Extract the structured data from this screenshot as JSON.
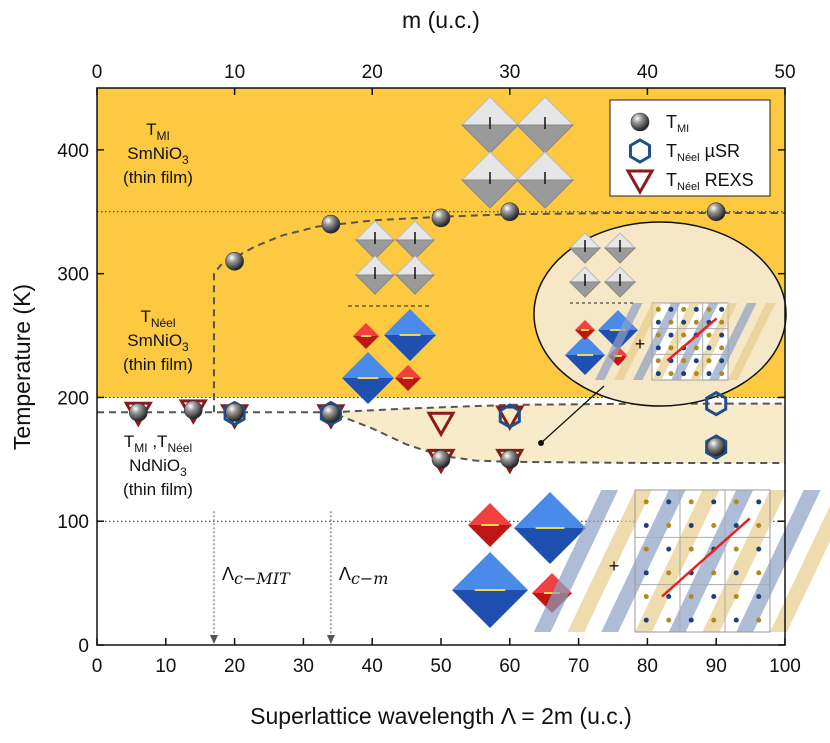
{
  "chart_data": {
    "type": "scatter",
    "x_label": "Superlattice wavelength Λ = 2m (u.c.)",
    "x2_label": "m (u.c.)",
    "y_label": "Temperature (K)",
    "xlim": [
      0,
      100
    ],
    "xticks": [
      0,
      10,
      20,
      30,
      40,
      50,
      60,
      70,
      80,
      90,
      100
    ],
    "x2lim": [
      0,
      50
    ],
    "x2ticks": [
      0,
      10,
      20,
      30,
      40,
      50
    ],
    "ylim": [
      0,
      450
    ],
    "yticks": [
      0,
      100,
      200,
      300,
      400
    ],
    "series": [
      {
        "name": "T",
        "subscript": "Néel",
        "suffix": " REXS",
        "marker": "triangle",
        "color": "#8b1a1a",
        "x": [
          6,
          14,
          20,
          34,
          50,
          60,
          50,
          60
        ],
        "values": [
          188,
          190,
          186,
          186,
          180,
          185,
          150,
          150
        ]
      },
      {
        "name": "T",
        "subscript": "Néel",
        "suffix": " µSR",
        "marker": "hexagon",
        "color": "#1f4e8c",
        "x": [
          20,
          34,
          60,
          90,
          90
        ],
        "values": [
          187,
          187,
          185,
          195,
          160
        ]
      },
      {
        "name": "T",
        "subscript": "MI",
        "suffix": "",
        "marker": "sphere",
        "color": "#555555",
        "x": [
          6,
          14,
          20,
          34,
          50,
          60,
          90,
          20,
          34,
          50,
          60,
          90
        ],
        "values": [
          188,
          190,
          188,
          187,
          150,
          150,
          160,
          310,
          340,
          345,
          350,
          350
        ]
      }
    ],
    "legend_order": [
      2,
      1,
      0
    ],
    "reference_lines": [
      350,
      200,
      100
    ],
    "shade_color": "#fcc940",
    "band_color": "#f8ebc9",
    "guides": [
      {
        "x": [
          17,
          17,
          18,
          20,
          23,
          27,
          32,
          40,
          50,
          60,
          75,
          100
        ],
        "y": [
          188,
          300,
          307,
          313,
          322,
          331,
          338,
          343,
          346,
          348,
          349,
          349
        ]
      },
      {
        "x": [
          0,
          34,
          40,
          45,
          50,
          55,
          60,
          80,
          100
        ],
        "y": [
          188,
          188,
          175,
          162,
          153,
          149,
          148,
          147,
          147
        ]
      },
      {
        "x": [
          34,
          45,
          60,
          80,
          100
        ],
        "y": [
          188,
          191,
          194,
          195,
          195
        ]
      }
    ],
    "critical_lines": [
      {
        "x": 17,
        "symbol": "Λ",
        "subscript": "c−MIT"
      },
      {
        "x": 34,
        "symbol": "Λ",
        "subscript": "c−m"
      }
    ],
    "annotations": [
      {
        "lines": [
          [
            "T",
            "MI"
          ],
          [
            "SmNiO",
            "3"
          ],
          [
            "(thin film)"
          ]
        ]
      },
      {
        "lines": [
          [
            "T",
            "Néel"
          ],
          [
            "SmNiO",
            "3"
          ],
          [
            "(thin film)"
          ]
        ]
      },
      {
        "lines": [
          [
            "T",
            "MI",
            " ,T",
            "Néel"
          ],
          [
            "NdNiO",
            "3"
          ],
          [
            "(thin film)"
          ]
        ]
      }
    ],
    "plus_signs": [
      "+",
      "+"
    ]
  }
}
